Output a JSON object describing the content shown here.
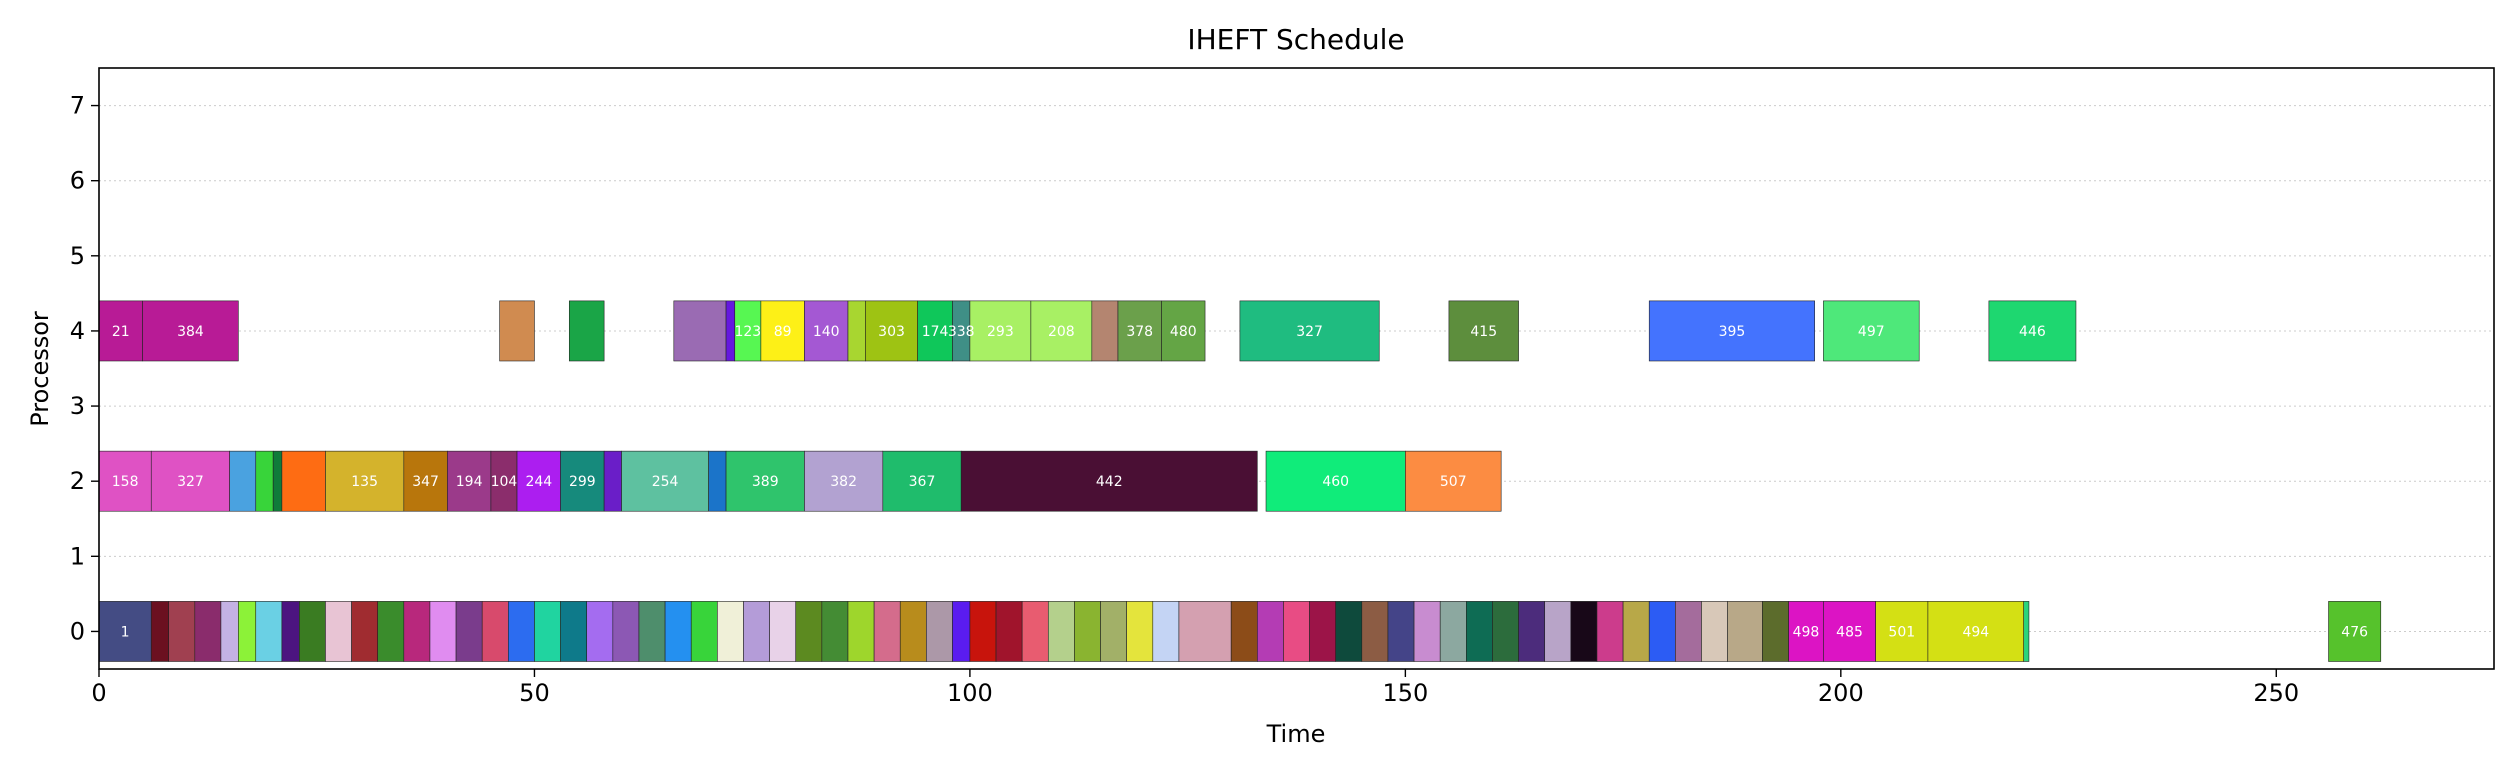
{
  "chart_data": {
    "type": "gantt",
    "title": "IHEFT Schedule",
    "xlabel": "Time",
    "ylabel": "Processor",
    "xlim": [
      0,
      275
    ],
    "ylim": [
      -0.5,
      7.5
    ],
    "xticks": [
      0,
      50,
      100,
      150,
      200,
      250
    ],
    "yticks": [
      0,
      1,
      2,
      3,
      4,
      5,
      6,
      7
    ],
    "grid": "horizontal dotted",
    "tasks": [
      {
        "p": 4,
        "start": 0.0,
        "end": 5.0,
        "label": "21",
        "color": "#b81b96"
      },
      {
        "p": 4,
        "start": 5.0,
        "end": 16.0,
        "label": "384",
        "color": "#b81b96"
      },
      {
        "p": 4,
        "start": 46.0,
        "end": 50.0,
        "label": "",
        "color": "#d08b50"
      },
      {
        "p": 4,
        "start": 54.0,
        "end": 58.0,
        "label": "",
        "color": "#1aa547"
      },
      {
        "p": 4,
        "start": 66.0,
        "end": 72.0,
        "label": "",
        "color": "#9a6bb3"
      },
      {
        "p": 4,
        "start": 72.0,
        "end": 73.0,
        "label": "",
        "color": "#6517e0"
      },
      {
        "p": 4,
        "start": 73.0,
        "end": 76.0,
        "label": "123",
        "color": "#57f752"
      },
      {
        "p": 4,
        "start": 76.0,
        "end": 81.0,
        "label": "89",
        "color": "#fdf017"
      },
      {
        "p": 4,
        "start": 81.0,
        "end": 86.0,
        "label": "140",
        "color": "#a458d3"
      },
      {
        "p": 4,
        "start": 86.0,
        "end": 88.0,
        "label": "",
        "color": "#a8d630"
      },
      {
        "p": 4,
        "start": 88.0,
        "end": 94.0,
        "label": "303",
        "color": "#9ec313"
      },
      {
        "p": 4,
        "start": 94.0,
        "end": 98.0,
        "label": "174",
        "color": "#0fc75a"
      },
      {
        "p": 4,
        "start": 98.0,
        "end": 100.0,
        "label": "338",
        "color": "#3f8f86"
      },
      {
        "p": 4,
        "start": 100.0,
        "end": 107.0,
        "label": "293",
        "color": "#a8f064"
      },
      {
        "p": 4,
        "start": 107.0,
        "end": 114.0,
        "label": "208",
        "color": "#a8f064"
      },
      {
        "p": 4,
        "start": 114.0,
        "end": 117.0,
        "label": "",
        "color": "#b48570"
      },
      {
        "p": 4,
        "start": 117.0,
        "end": 122.0,
        "label": "378",
        "color": "#6ba04b"
      },
      {
        "p": 4,
        "start": 122.0,
        "end": 127.0,
        "label": "480",
        "color": "#64a545"
      },
      {
        "p": 4,
        "start": 131.0,
        "end": 147.0,
        "label": "327",
        "color": "#1fbc80"
      },
      {
        "p": 4,
        "start": 155.0,
        "end": 163.0,
        "label": "415",
        "color": "#5d8e3d"
      },
      {
        "p": 4,
        "start": 178.0,
        "end": 197.0,
        "label": "395",
        "color": "#4473fe"
      },
      {
        "p": 4,
        "start": 198.0,
        "end": 209.0,
        "label": "497",
        "color": "#4ee87a"
      },
      {
        "p": 4,
        "start": 217.0,
        "end": 227.0,
        "label": "446",
        "color": "#1ed770"
      },
      {
        "p": 2,
        "start": 0.0,
        "end": 6.0,
        "label": "158",
        "color": "#df52c4"
      },
      {
        "p": 2,
        "start": 6.0,
        "end": 15.0,
        "label": "327",
        "color": "#df52c4"
      },
      {
        "p": 2,
        "start": 15.0,
        "end": 18.0,
        "label": "",
        "color": "#4aa2e0"
      },
      {
        "p": 2,
        "start": 18.0,
        "end": 20.0,
        "label": "",
        "color": "#38d43a"
      },
      {
        "p": 2,
        "start": 20.0,
        "end": 21.0,
        "label": "",
        "color": "#0f7c3a"
      },
      {
        "p": 2,
        "start": 21.0,
        "end": 26.0,
        "label": "",
        "color": "#fe6c13"
      },
      {
        "p": 2,
        "start": 26.0,
        "end": 35.0,
        "label": "135",
        "color": "#d4b32c"
      },
      {
        "p": 2,
        "start": 35.0,
        "end": 40.0,
        "label": "347",
        "color": "#b8760c"
      },
      {
        "p": 2,
        "start": 40.0,
        "end": 45.0,
        "label": "194",
        "color": "#9b3a8a"
      },
      {
        "p": 2,
        "start": 45.0,
        "end": 48.0,
        "label": "104",
        "color": "#8b2d6c"
      },
      {
        "p": 2,
        "start": 48.0,
        "end": 53.0,
        "label": "244",
        "color": "#ac1ef0"
      },
      {
        "p": 2,
        "start": 53.0,
        "end": 58.0,
        "label": "299",
        "color": "#168a7c"
      },
      {
        "p": 2,
        "start": 58.0,
        "end": 60.0,
        "label": "",
        "color": "#6a1ec8"
      },
      {
        "p": 2,
        "start": 60.0,
        "end": 70.0,
        "label": "254",
        "color": "#5ec1a0"
      },
      {
        "p": 2,
        "start": 70.0,
        "end": 72.0,
        "label": "",
        "color": "#1b74c9"
      },
      {
        "p": 2,
        "start": 72.0,
        "end": 81.0,
        "label": "389",
        "color": "#2fc46c"
      },
      {
        "p": 2,
        "start": 81.0,
        "end": 90.0,
        "label": "382",
        "color": "#b2a2d1"
      },
      {
        "p": 2,
        "start": 90.0,
        "end": 99.0,
        "label": "367",
        "color": "#1fbc6c"
      },
      {
        "p": 2,
        "start": 99.0,
        "end": 133.0,
        "label": "442",
        "color": "#4a0f34"
      },
      {
        "p": 2,
        "start": 134.0,
        "end": 150.0,
        "label": "460",
        "color": "#10ec7a"
      },
      {
        "p": 2,
        "start": 150.0,
        "end": 161.0,
        "label": "507",
        "color": "#fc8c42"
      },
      {
        "p": 0,
        "start": 0.0,
        "end": 6.0,
        "label": "1",
        "color": "#444c84"
      },
      {
        "p": 0,
        "start": 6.0,
        "end": 8.0,
        "label": "",
        "color": "#6b1020"
      },
      {
        "p": 0,
        "start": 8.0,
        "end": 11.0,
        "label": "",
        "color": "#a04050"
      },
      {
        "p": 0,
        "start": 11.0,
        "end": 14.0,
        "label": "",
        "color": "#8a2c6c"
      },
      {
        "p": 0,
        "start": 14.0,
        "end": 16.0,
        "label": "",
        "color": "#c4b2e4"
      },
      {
        "p": 0,
        "start": 16.0,
        "end": 18.0,
        "label": "",
        "color": "#8cf238"
      },
      {
        "p": 0,
        "start": 18.0,
        "end": 21.0,
        "label": "",
        "color": "#6ad0e4"
      },
      {
        "p": 0,
        "start": 21.0,
        "end": 23.0,
        "label": "",
        "color": "#4c1480"
      },
      {
        "p": 0,
        "start": 23.0,
        "end": 26.0,
        "label": "",
        "color": "#3a7c22"
      },
      {
        "p": 0,
        "start": 26.0,
        "end": 29.0,
        "label": "",
        "color": "#e8c4d4"
      },
      {
        "p": 0,
        "start": 29.0,
        "end": 32.0,
        "label": "",
        "color": "#a02c30"
      },
      {
        "p": 0,
        "start": 32.0,
        "end": 35.0,
        "label": "",
        "color": "#3a8c2c"
      },
      {
        "p": 0,
        "start": 35.0,
        "end": 38.0,
        "label": "",
        "color": "#b8287c"
      },
      {
        "p": 0,
        "start": 38.0,
        "end": 41.0,
        "label": "",
        "color": "#e08cf0"
      },
      {
        "p": 0,
        "start": 41.0,
        "end": 44.0,
        "label": "",
        "color": "#7a3c8c"
      },
      {
        "p": 0,
        "start": 44.0,
        "end": 47.0,
        "label": "",
        "color": "#d84a6c"
      },
      {
        "p": 0,
        "start": 47.0,
        "end": 50.0,
        "label": "",
        "color": "#2c6cf0"
      },
      {
        "p": 0,
        "start": 50.0,
        "end": 53.0,
        "label": "",
        "color": "#20d4a0"
      },
      {
        "p": 0,
        "start": 53.0,
        "end": 56.0,
        "label": "",
        "color": "#0e7a8a"
      },
      {
        "p": 0,
        "start": 56.0,
        "end": 59.0,
        "label": "",
        "color": "#a46cf0"
      },
      {
        "p": 0,
        "start": 59.0,
        "end": 62.0,
        "label": "",
        "color": "#8c58b4"
      },
      {
        "p": 0,
        "start": 62.0,
        "end": 65.0,
        "label": "",
        "color": "#4e8e6c"
      },
      {
        "p": 0,
        "start": 65.0,
        "end": 68.0,
        "label": "",
        "color": "#2490f0"
      },
      {
        "p": 0,
        "start": 68.0,
        "end": 71.0,
        "label": "",
        "color": "#38d43a"
      },
      {
        "p": 0,
        "start": 71.0,
        "end": 74.0,
        "label": "",
        "color": "#f0f0d8"
      },
      {
        "p": 0,
        "start": 74.0,
        "end": 77.0,
        "label": "",
        "color": "#b49cd8"
      },
      {
        "p": 0,
        "start": 77.0,
        "end": 80.0,
        "label": "",
        "color": "#e8d2e8"
      },
      {
        "p": 0,
        "start": 80.0,
        "end": 83.0,
        "label": "",
        "color": "#5c8a20"
      },
      {
        "p": 0,
        "start": 83.0,
        "end": 86.0,
        "label": "",
        "color": "#448c34"
      },
      {
        "p": 0,
        "start": 86.0,
        "end": 89.0,
        "label": "",
        "color": "#9ed62c"
      },
      {
        "p": 0,
        "start": 89.0,
        "end": 92.0,
        "label": "",
        "color": "#d46c8c"
      },
      {
        "p": 0,
        "start": 92.0,
        "end": 95.0,
        "label": "",
        "color": "#b88c1c"
      },
      {
        "p": 0,
        "start": 95.0,
        "end": 98.0,
        "label": "",
        "color": "#ac98a8"
      },
      {
        "p": 0,
        "start": 98.0,
        "end": 100.0,
        "label": "",
        "color": "#5a1cf0"
      },
      {
        "p": 0,
        "start": 100.0,
        "end": 103.0,
        "label": "",
        "color": "#c8140c"
      },
      {
        "p": 0,
        "start": 103.0,
        "end": 106.0,
        "label": "",
        "color": "#a0142c"
      },
      {
        "p": 0,
        "start": 106.0,
        "end": 109.0,
        "label": "",
        "color": "#e85c70"
      },
      {
        "p": 0,
        "start": 109.0,
        "end": 112.0,
        "label": "",
        "color": "#b4d08c"
      },
      {
        "p": 0,
        "start": 112.0,
        "end": 115.0,
        "label": "",
        "color": "#8ab430"
      },
      {
        "p": 0,
        "start": 115.0,
        "end": 118.0,
        "label": "",
        "color": "#a2b068"
      },
      {
        "p": 0,
        "start": 118.0,
        "end": 121.0,
        "label": "",
        "color": "#e4e43c"
      },
      {
        "p": 0,
        "start": 121.0,
        "end": 124.0,
        "label": "",
        "color": "#c4d4f4"
      },
      {
        "p": 0,
        "start": 124.0,
        "end": 130.0,
        "label": "",
        "color": "#d4a0b0"
      },
      {
        "p": 0,
        "start": 130.0,
        "end": 133.0,
        "label": "",
        "color": "#8c4c18"
      },
      {
        "p": 0,
        "start": 133.0,
        "end": 136.0,
        "label": "",
        "color": "#b43cb4"
      },
      {
        "p": 0,
        "start": 136.0,
        "end": 139.0,
        "label": "",
        "color": "#e84c84"
      },
      {
        "p": 0,
        "start": 139.0,
        "end": 142.0,
        "label": "",
        "color": "#9c1448"
      },
      {
        "p": 0,
        "start": 142.0,
        "end": 145.0,
        "label": "",
        "color": "#0e4a3c"
      },
      {
        "p": 0,
        "start": 145.0,
        "end": 148.0,
        "label": "",
        "color": "#8c5c44"
      },
      {
        "p": 0,
        "start": 148.0,
        "end": 151.0,
        "label": "",
        "color": "#444488"
      },
      {
        "p": 0,
        "start": 151.0,
        "end": 154.0,
        "label": "",
        "color": "#c88cd0"
      },
      {
        "p": 0,
        "start": 154.0,
        "end": 157.0,
        "label": "",
        "color": "#8ca8a0"
      },
      {
        "p": 0,
        "start": 157.0,
        "end": 160.0,
        "label": "",
        "color": "#0e6c54"
      },
      {
        "p": 0,
        "start": 160.0,
        "end": 163.0,
        "label": "",
        "color": "#2c6c3c"
      },
      {
        "p": 0,
        "start": 163.0,
        "end": 166.0,
        "label": "",
        "color": "#4c2c7c"
      },
      {
        "p": 0,
        "start": 166.0,
        "end": 169.0,
        "label": "",
        "color": "#b8a4c8"
      },
      {
        "p": 0,
        "start": 169.0,
        "end": 172.0,
        "label": "",
        "color": "#180818"
      },
      {
        "p": 0,
        "start": 172.0,
        "end": 175.0,
        "label": "",
        "color": "#cc3c8c"
      },
      {
        "p": 0,
        "start": 175.0,
        "end": 178.0,
        "label": "",
        "color": "#b8a848"
      },
      {
        "p": 0,
        "start": 178.0,
        "end": 181.0,
        "label": "",
        "color": "#2c5cf4"
      },
      {
        "p": 0,
        "start": 181.0,
        "end": 184.0,
        "label": "",
        "color": "#a46c9c"
      },
      {
        "p": 0,
        "start": 184.0,
        "end": 187.0,
        "label": "",
        "color": "#d8c8b8"
      },
      {
        "p": 0,
        "start": 187.0,
        "end": 191.0,
        "label": "",
        "color": "#b8a888"
      },
      {
        "p": 0,
        "start": 191.0,
        "end": 194.0,
        "label": "",
        "color": "#5c6c2c"
      },
      {
        "p": 0,
        "start": 194.0,
        "end": 198.0,
        "label": "498",
        "color": "#dc14c4"
      },
      {
        "p": 0,
        "start": 198.0,
        "end": 204.0,
        "label": "485",
        "color": "#dc14c4"
      },
      {
        "p": 0,
        "start": 204.0,
        "end": 210.0,
        "label": "501",
        "color": "#d4e014"
      },
      {
        "p": 0,
        "start": 210.0,
        "end": 221.0,
        "label": "494",
        "color": "#d4e014"
      },
      {
        "p": 0,
        "start": 221.0,
        "end": 221.6,
        "label": "",
        "color": "#2cd47c"
      },
      {
        "p": 0,
        "start": 256.0,
        "end": 262.0,
        "label": "476",
        "color": "#56c22c"
      }
    ]
  }
}
